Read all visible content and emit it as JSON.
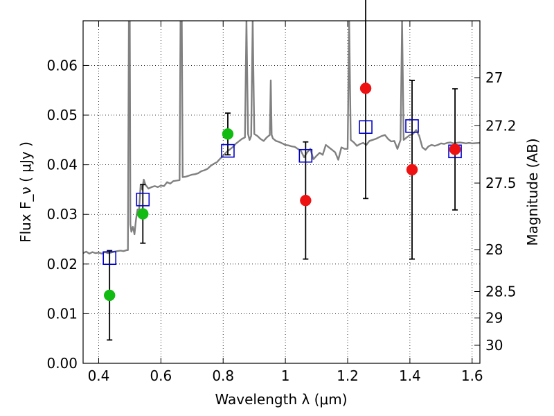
{
  "chart_data": {
    "type": "scatter",
    "xlabel": "Wavelength  λ (μm)",
    "ylabel": "Flux  F_ν  ( μJy )",
    "y2label": "Magnitude (AB)",
    "xlim": [
      0.35,
      1.625
    ],
    "ylim": [
      0.0,
      0.069
    ],
    "xticks": [
      0.4,
      0.6,
      0.8,
      1.0,
      1.2,
      1.4,
      1.6
    ],
    "xtick_labels": [
      "0.4",
      "0.6",
      "0.8",
      "1",
      "1.2",
      "1.4",
      "1.6"
    ],
    "yticks": [
      0.0,
      0.01,
      0.02,
      0.03,
      0.04,
      0.05,
      0.06
    ],
    "ytick_labels": [
      "0.00",
      "0.01",
      "0.02",
      "0.03",
      "0.04",
      "0.05",
      "0.06"
    ],
    "y2ticks": [
      27,
      27.2,
      27.5,
      28,
      28.5,
      29,
      30
    ],
    "y2tick_labels": [
      "27",
      "27.2",
      "27.5",
      "28",
      "28.5",
      "29",
      "30"
    ],
    "grid": true,
    "colors": {
      "model": "#808080",
      "model_photometry": "#0000cc",
      "green_points": "#11bb11",
      "red_points": "#ee1111",
      "errorbar": "#000000"
    },
    "series": [
      {
        "kind": "line",
        "points": [
          [
            0.35,
            0.0222
          ],
          [
            0.36,
            0.0225
          ],
          [
            0.37,
            0.0221
          ],
          [
            0.38,
            0.0224
          ],
          [
            0.39,
            0.0222
          ],
          [
            0.4,
            0.0223
          ],
          [
            0.41,
            0.0221
          ],
          [
            0.42,
            0.0224
          ],
          [
            0.43,
            0.0222
          ],
          [
            0.44,
            0.0223
          ],
          [
            0.45,
            0.0225
          ],
          [
            0.46,
            0.0226
          ],
          [
            0.47,
            0.0227
          ],
          [
            0.48,
            0.0226
          ],
          [
            0.49,
            0.0228
          ],
          [
            0.494,
            0.0228
          ],
          [
            0.497,
            0.069
          ],
          [
            0.5,
            0.069
          ],
          [
            0.502,
            0.028
          ],
          [
            0.505,
            0.0265
          ],
          [
            0.51,
            0.0275
          ],
          [
            0.515,
            0.026
          ],
          [
            0.52,
            0.029
          ],
          [
            0.525,
            0.031
          ],
          [
            0.53,
            0.031
          ],
          [
            0.535,
            0.036
          ],
          [
            0.54,
            0.035
          ],
          [
            0.545,
            0.037
          ],
          [
            0.55,
            0.036
          ],
          [
            0.56,
            0.0352
          ],
          [
            0.57,
            0.0355
          ],
          [
            0.58,
            0.0357
          ],
          [
            0.59,
            0.0355
          ],
          [
            0.6,
            0.0358
          ],
          [
            0.61,
            0.0357
          ],
          [
            0.62,
            0.0365
          ],
          [
            0.63,
            0.0362
          ],
          [
            0.64,
            0.0367
          ],
          [
            0.65,
            0.0368
          ],
          [
            0.66,
            0.0369
          ],
          [
            0.663,
            0.069
          ],
          [
            0.667,
            0.069
          ],
          [
            0.67,
            0.0375
          ],
          [
            0.68,
            0.0376
          ],
          [
            0.69,
            0.0378
          ],
          [
            0.7,
            0.038
          ],
          [
            0.71,
            0.0381
          ],
          [
            0.72,
            0.0383
          ],
          [
            0.73,
            0.0387
          ],
          [
            0.74,
            0.0389
          ],
          [
            0.75,
            0.0392
          ],
          [
            0.76,
            0.0398
          ],
          [
            0.77,
            0.0402
          ],
          [
            0.78,
            0.0405
          ],
          [
            0.79,
            0.0412
          ],
          [
            0.8,
            0.0418
          ],
          [
            0.81,
            0.0425
          ],
          [
            0.82,
            0.043
          ],
          [
            0.83,
            0.0435
          ],
          [
            0.84,
            0.0442
          ],
          [
            0.85,
            0.0447
          ],
          [
            0.86,
            0.0452
          ],
          [
            0.87,
            0.0455
          ],
          [
            0.875,
            0.069
          ],
          [
            0.88,
            0.0462
          ],
          [
            0.885,
            0.045
          ],
          [
            0.89,
            0.0458
          ],
          [
            0.895,
            0.069
          ],
          [
            0.9,
            0.0462
          ],
          [
            0.91,
            0.0458
          ],
          [
            0.92,
            0.0452
          ],
          [
            0.93,
            0.0448
          ],
          [
            0.94,
            0.0455
          ],
          [
            0.95,
            0.046
          ],
          [
            0.953,
            0.057
          ],
          [
            0.956,
            0.046
          ],
          [
            0.96,
            0.0453
          ],
          [
            0.97,
            0.0448
          ],
          [
            0.98,
            0.0446
          ],
          [
            0.99,
            0.0443
          ],
          [
            1.0,
            0.044
          ],
          [
            1.01,
            0.0439
          ],
          [
            1.02,
            0.0437
          ],
          [
            1.03,
            0.0436
          ],
          [
            1.04,
            0.0432
          ],
          [
            1.05,
            0.0428
          ],
          [
            1.06,
            0.0415
          ],
          [
            1.07,
            0.0425
          ],
          [
            1.08,
            0.0432
          ],
          [
            1.09,
            0.0411
          ],
          [
            1.1,
            0.0418
          ],
          [
            1.11,
            0.0424
          ],
          [
            1.12,
            0.042
          ],
          [
            1.13,
            0.044
          ],
          [
            1.14,
            0.0435
          ],
          [
            1.15,
            0.043
          ],
          [
            1.16,
            0.0425
          ],
          [
            1.17,
            0.041
          ],
          [
            1.18,
            0.0435
          ],
          [
            1.19,
            0.0432
          ],
          [
            1.2,
            0.0432
          ],
          [
            1.205,
            0.069
          ],
          [
            1.21,
            0.045
          ],
          [
            1.22,
            0.0445
          ],
          [
            1.23,
            0.0438
          ],
          [
            1.24,
            0.0442
          ],
          [
            1.25,
            0.0444
          ],
          [
            1.26,
            0.044
          ],
          [
            1.27,
            0.0448
          ],
          [
            1.28,
            0.045
          ],
          [
            1.29,
            0.0452
          ],
          [
            1.3,
            0.0455
          ],
          [
            1.31,
            0.0458
          ],
          [
            1.32,
            0.046
          ],
          [
            1.33,
            0.0452
          ],
          [
            1.34,
            0.0447
          ],
          [
            1.35,
            0.0448
          ],
          [
            1.36,
            0.0432
          ],
          [
            1.37,
            0.045
          ],
          [
            1.375,
            0.069
          ],
          [
            1.38,
            0.045
          ],
          [
            1.39,
            0.0455
          ],
          [
            1.4,
            0.046
          ],
          [
            1.41,
            0.0462
          ],
          [
            1.42,
            0.047
          ],
          [
            1.43,
            0.0458
          ],
          [
            1.44,
            0.0435
          ],
          [
            1.45,
            0.043
          ],
          [
            1.46,
            0.0437
          ],
          [
            1.47,
            0.044
          ],
          [
            1.48,
            0.0438
          ],
          [
            1.49,
            0.044
          ],
          [
            1.5,
            0.0443
          ],
          [
            1.51,
            0.0442
          ],
          [
            1.52,
            0.0444
          ],
          [
            1.53,
            0.0445
          ],
          [
            1.54,
            0.0443
          ],
          [
            1.55,
            0.0444
          ],
          [
            1.56,
            0.0445
          ],
          [
            1.57,
            0.0444
          ],
          [
            1.58,
            0.0443
          ],
          [
            1.59,
            0.0444
          ],
          [
            1.6,
            0.0443
          ],
          [
            1.625,
            0.0444
          ]
        ]
      },
      {
        "kind": "square",
        "x": [
          0.435,
          0.542,
          0.815,
          1.065,
          1.258,
          1.407,
          1.545
        ],
        "y": [
          0.0212,
          0.033,
          0.0428,
          0.0418,
          0.0476,
          0.0478,
          0.0427
        ]
      },
      {
        "kind": "circle",
        "color": "green",
        "x": [
          0.435,
          0.542,
          0.815
        ],
        "y": [
          0.0137,
          0.0301,
          0.0462
        ],
        "yerr": [
          0.009,
          0.0059,
          0.0042
        ]
      },
      {
        "kind": "circle",
        "color": "red",
        "x": [
          1.065,
          1.258,
          1.407,
          1.545
        ],
        "y": [
          0.0328,
          0.0554,
          0.039,
          0.0431
        ],
        "yerr": [
          0.0118,
          0.0222,
          0.018,
          0.0122
        ]
      }
    ]
  }
}
